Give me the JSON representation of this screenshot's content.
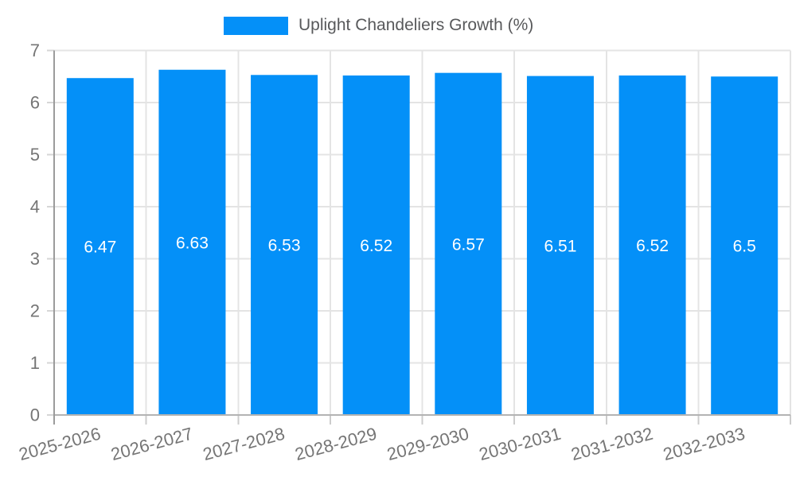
{
  "chart_data": {
    "type": "bar",
    "title": "",
    "legend": "Uplight Chandeliers Growth (%)",
    "legend_position": "top-center",
    "categories": [
      "2025-2026",
      "2026-2027",
      "2027-2028",
      "2028-2029",
      "2029-2030",
      "2030-2031",
      "2031-2032",
      "2032-2033"
    ],
    "values": [
      6.47,
      6.63,
      6.53,
      6.52,
      6.57,
      6.51,
      6.52,
      6.5
    ],
    "xlabel": "",
    "ylabel": "",
    "ylim": [
      0,
      7
    ],
    "y_ticks": [
      0,
      1,
      2,
      3,
      4,
      5,
      6,
      7
    ],
    "grid": true,
    "x_tick_rotation_deg": -15,
    "bar_value_labels_inside": true,
    "colors": {
      "bar": "#0490f8",
      "bar_value_label": "#ffffff",
      "axis_label": "#757575",
      "legend_text": "#58595b",
      "gridline": "#e4e4e4",
      "axis_line": "#9b9b9b",
      "baseline": "#b3b3b3",
      "y_tick": "#d6d6d6",
      "x_tick": "#cccccc",
      "background": "#ffffff"
    }
  }
}
